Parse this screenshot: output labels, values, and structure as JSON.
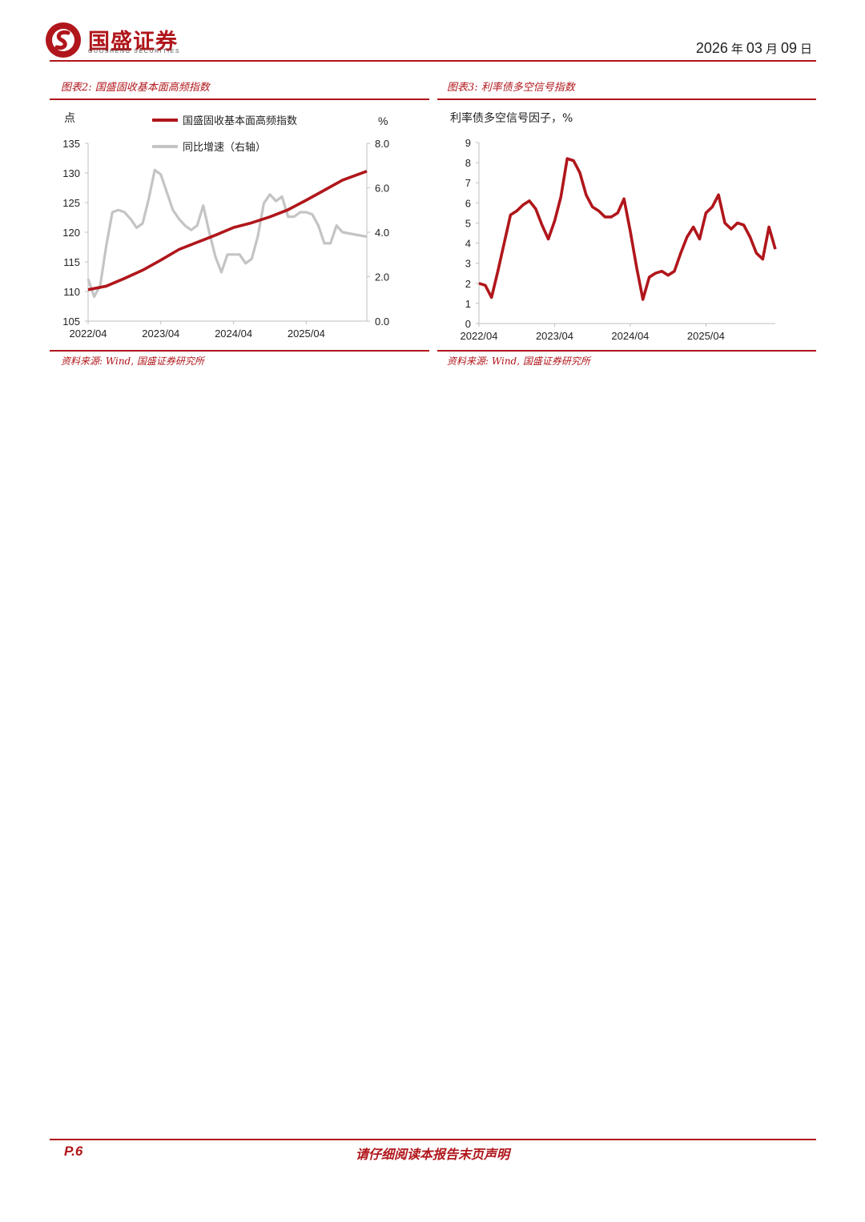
{
  "header": {
    "brand_name": "国盛证券",
    "brand_sub": "GUOSHENG SECURITIES",
    "date_year": "2026",
    "date_year_unit": "年",
    "date_month": "03",
    "date_month_unit": "月",
    "date_day": "09",
    "date_day_unit": "日",
    "accent_color": "#b0161b"
  },
  "figure_left": {
    "title": "图表2: 国盛固收基本面高频指数",
    "source": "资料来源: Wind, 国盛证券研究所"
  },
  "figure_right": {
    "title": "图表3: 利率债多空信号指数",
    "source": "资料来源: Wind, 国盛证券研究所"
  },
  "footer": {
    "page": "P.6",
    "disclaimer": "请仔细阅读本报告末页声明"
  },
  "chart_data": [
    {
      "type": "line",
      "left_unit_label": "点",
      "right_unit_label": "%",
      "x_ticks": [
        "2022/04",
        "2023/04",
        "2024/04",
        "2025/04"
      ],
      "y_left_ticks": [
        "105",
        "110",
        "115",
        "120",
        "125",
        "130",
        "135"
      ],
      "y_right_ticks": [
        "0.0",
        "2.0",
        "4.0",
        "6.0",
        "8.0"
      ],
      "ylim_left": [
        105,
        135
      ],
      "ylim_right": [
        0,
        8
      ],
      "xlim": [
        "2022/04",
        "2026/02"
      ],
      "legend_position": "top",
      "series": [
        {
          "name": "国盛固收基本面高频指数",
          "axis": "left",
          "color": "#b0161b",
          "points": [
            [
              "2022/04",
              110.3
            ],
            [
              "2022/07",
              110.9
            ],
            [
              "2022/10",
              112.2
            ],
            [
              "2023/01",
              113.6
            ],
            [
              "2023/04",
              115.3
            ],
            [
              "2023/07",
              117.1
            ],
            [
              "2023/10",
              118.3
            ],
            [
              "2024/01",
              119.5
            ],
            [
              "2024/04",
              120.8
            ],
            [
              "2024/07",
              121.6
            ],
            [
              "2024/10",
              122.6
            ],
            [
              "2025/01",
              123.8
            ],
            [
              "2025/04",
              125.4
            ],
            [
              "2025/07",
              127.1
            ],
            [
              "2025/10",
              128.8
            ],
            [
              "2026/02",
              130.3
            ]
          ]
        },
        {
          "name": "同比增速（右轴）",
          "axis": "right",
          "color": "#c4c4c4",
          "points": [
            [
              "2022/04",
              1.9
            ],
            [
              "2022/05",
              1.1
            ],
            [
              "2022/06",
              1.6
            ],
            [
              "2022/07",
              3.4
            ],
            [
              "2022/08",
              4.9
            ],
            [
              "2022/09",
              5.0
            ],
            [
              "2022/10",
              4.9
            ],
            [
              "2022/11",
              4.6
            ],
            [
              "2022/12",
              4.2
            ],
            [
              "2023/01",
              4.4
            ],
            [
              "2023/02",
              5.5
            ],
            [
              "2023/03",
              6.8
            ],
            [
              "2023/04",
              6.6
            ],
            [
              "2023/05",
              5.8
            ],
            [
              "2023/06",
              5.0
            ],
            [
              "2023/07",
              4.6
            ],
            [
              "2023/08",
              4.3
            ],
            [
              "2023/09",
              4.1
            ],
            [
              "2023/10",
              4.3
            ],
            [
              "2023/11",
              5.2
            ],
            [
              "2023/12",
              4.0
            ],
            [
              "2024/01",
              2.9
            ],
            [
              "2024/02",
              2.2
            ],
            [
              "2024/03",
              3.0
            ],
            [
              "2024/04",
              3.0
            ],
            [
              "2024/05",
              3.0
            ],
            [
              "2024/06",
              2.6
            ],
            [
              "2024/07",
              2.8
            ],
            [
              "2024/08",
              3.8
            ],
            [
              "2024/09",
              5.3
            ],
            [
              "2024/10",
              5.7
            ],
            [
              "2024/11",
              5.4
            ],
            [
              "2024/12",
              5.6
            ],
            [
              "2025/01",
              4.7
            ],
            [
              "2025/02",
              4.7
            ],
            [
              "2025/03",
              4.9
            ],
            [
              "2025/04",
              4.9
            ],
            [
              "2025/05",
              4.8
            ],
            [
              "2025/06",
              4.3
            ],
            [
              "2025/07",
              3.5
            ],
            [
              "2025/08",
              3.5
            ],
            [
              "2025/09",
              4.3
            ],
            [
              "2025/10",
              4.0
            ],
            [
              "2026/02",
              3.8
            ]
          ]
        }
      ]
    },
    {
      "type": "line",
      "title": "利率债多空信号因子，%",
      "x_ticks": [
        "2022/04",
        "2023/04",
        "2024/04",
        "2025/04"
      ],
      "y_ticks": [
        "0",
        "1",
        "2",
        "3",
        "4",
        "5",
        "6",
        "7",
        "8",
        "9"
      ],
      "ylim": [
        0,
        9
      ],
      "xlim": [
        "2022/04",
        "2026/02"
      ],
      "series": [
        {
          "name": "利率债多空信号因子",
          "color": "#b0161b",
          "points": [
            [
              "2022/04",
              2.0
            ],
            [
              "2022/05",
              1.9
            ],
            [
              "2022/06",
              1.3
            ],
            [
              "2022/07",
              2.6
            ],
            [
              "2022/08",
              4.0
            ],
            [
              "2022/09",
              5.4
            ],
            [
              "2022/10",
              5.6
            ],
            [
              "2022/11",
              5.9
            ],
            [
              "2022/12",
              6.1
            ],
            [
              "2023/01",
              5.7
            ],
            [
              "2023/02",
              4.9
            ],
            [
              "2023/03",
              4.2
            ],
            [
              "2023/04",
              5.1
            ],
            [
              "2023/05",
              6.3
            ],
            [
              "2023/06",
              8.2
            ],
            [
              "2023/07",
              8.1
            ],
            [
              "2023/08",
              7.5
            ],
            [
              "2023/09",
              6.4
            ],
            [
              "2023/10",
              5.8
            ],
            [
              "2023/11",
              5.6
            ],
            [
              "2023/12",
              5.3
            ],
            [
              "2024/01",
              5.3
            ],
            [
              "2024/02",
              5.5
            ],
            [
              "2024/03",
              6.2
            ],
            [
              "2024/04",
              4.6
            ],
            [
              "2024/05",
              2.8
            ],
            [
              "2024/06",
              1.2
            ],
            [
              "2024/07",
              2.3
            ],
            [
              "2024/08",
              2.5
            ],
            [
              "2024/09",
              2.6
            ],
            [
              "2024/10",
              2.4
            ],
            [
              "2024/11",
              2.6
            ],
            [
              "2024/12",
              3.5
            ],
            [
              "2025/01",
              4.3
            ],
            [
              "2025/02",
              4.8
            ],
            [
              "2025/03",
              4.2
            ],
            [
              "2025/04",
              5.5
            ],
            [
              "2025/05",
              5.8
            ],
            [
              "2025/06",
              6.4
            ],
            [
              "2025/07",
              5.0
            ],
            [
              "2025/08",
              4.7
            ],
            [
              "2025/09",
              5.0
            ],
            [
              "2025/10",
              4.9
            ],
            [
              "2025/11",
              4.3
            ],
            [
              "2025/12",
              3.5
            ],
            [
              "2026/01",
              3.2
            ],
            [
              "2026/02",
              4.8
            ],
            [
              "2026/03",
              3.7
            ]
          ]
        }
      ]
    }
  ]
}
